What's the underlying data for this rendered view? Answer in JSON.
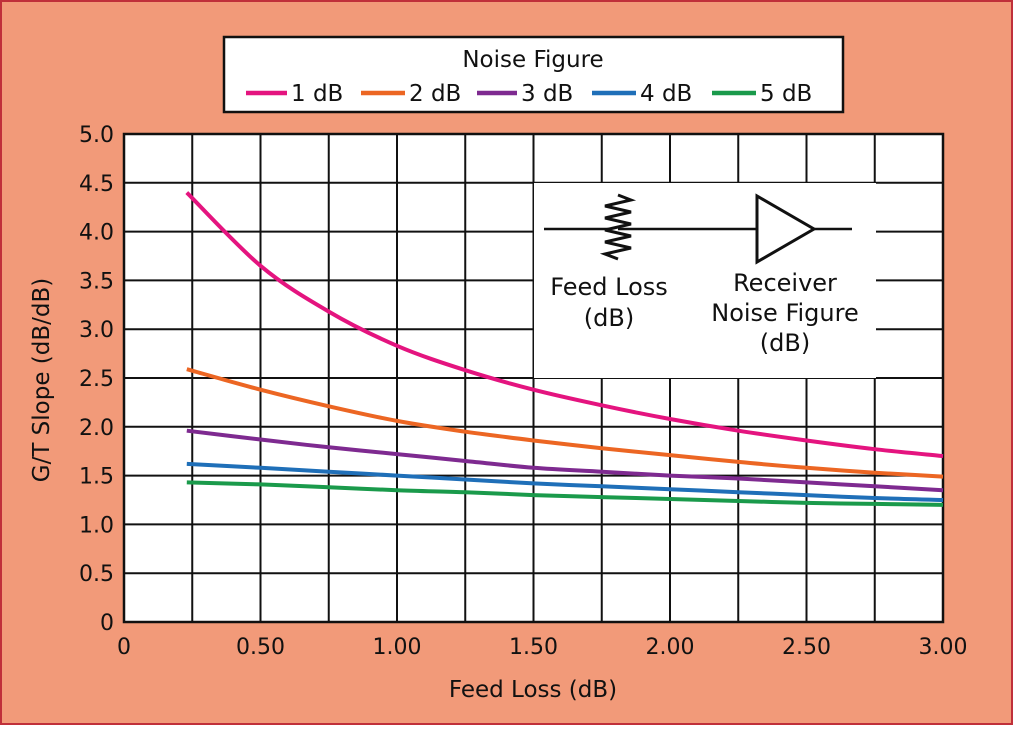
{
  "colors": {
    "background": "#f29a79",
    "border": "#c0303a",
    "plot_bg": "#ffffff",
    "grid": "#111111"
  },
  "legend": {
    "title": "Noise Figure"
  },
  "inset": {
    "left_label_1": "Feed Loss",
    "left_label_2": "(dB)",
    "right_label_1": "Receiver",
    "right_label_2": "Noise Figure",
    "right_label_3": "(dB)"
  },
  "chart_data": {
    "type": "line",
    "title": "",
    "xlabel": "Feed Loss (dB)",
    "ylabel": "G/T Slope (dB/dB)",
    "xlim": [
      0,
      3.0
    ],
    "ylim": [
      0,
      5.0
    ],
    "grid": true,
    "legend_position": "top-center",
    "x_ticks": [
      {
        "value": 0,
        "label": "0"
      },
      {
        "value": 0.5,
        "label": "0.50"
      },
      {
        "value": 1.0,
        "label": "1.00"
      },
      {
        "value": 1.5,
        "label": "1.50"
      },
      {
        "value": 2.0,
        "label": "2.00"
      },
      {
        "value": 2.5,
        "label": "2.50"
      },
      {
        "value": 3.0,
        "label": "3.00"
      }
    ],
    "y_ticks": [
      {
        "value": 0,
        "label": "0"
      },
      {
        "value": 0.5,
        "label": "0.5"
      },
      {
        "value": 1.0,
        "label": "1.0"
      },
      {
        "value": 1.5,
        "label": "1.5"
      },
      {
        "value": 2.0,
        "label": "2.0"
      },
      {
        "value": 2.5,
        "label": "2.5"
      },
      {
        "value": 3.0,
        "label": "3.0"
      },
      {
        "value": 3.5,
        "label": "3.5"
      },
      {
        "value": 4.0,
        "label": "4.0"
      },
      {
        "value": 4.5,
        "label": "4.5"
      },
      {
        "value": 5.0,
        "label": "5.0"
      }
    ],
    "series": [
      {
        "name": "1 dB",
        "color": "#e4147f",
        "x": [
          0.23,
          0.5,
          0.75,
          1.0,
          1.25,
          1.5,
          1.75,
          2.0,
          2.25,
          2.5,
          2.75,
          3.0
        ],
        "y": [
          4.4,
          3.65,
          3.18,
          2.83,
          2.58,
          2.38,
          2.22,
          2.08,
          1.96,
          1.86,
          1.77,
          1.7
        ]
      },
      {
        "name": "2 dB",
        "color": "#ec6623",
        "x": [
          0.23,
          0.5,
          0.75,
          1.0,
          1.25,
          1.5,
          1.75,
          2.0,
          2.25,
          2.5,
          2.75,
          3.0
        ],
        "y": [
          2.59,
          2.38,
          2.21,
          2.06,
          1.95,
          1.86,
          1.78,
          1.71,
          1.64,
          1.58,
          1.53,
          1.49
        ]
      },
      {
        "name": "3 dB",
        "color": "#7e2a90",
        "x": [
          0.23,
          0.5,
          0.75,
          1.0,
          1.25,
          1.5,
          1.75,
          2.0,
          2.25,
          2.5,
          2.75,
          3.0
        ],
        "y": [
          1.96,
          1.87,
          1.79,
          1.72,
          1.65,
          1.58,
          1.54,
          1.5,
          1.47,
          1.43,
          1.39,
          1.35
        ]
      },
      {
        "name": "4 dB",
        "color": "#1f6fb8",
        "x": [
          0.23,
          0.5,
          0.75,
          1.0,
          1.25,
          1.5,
          1.75,
          2.0,
          2.25,
          2.5,
          2.75,
          3.0
        ],
        "y": [
          1.62,
          1.58,
          1.54,
          1.5,
          1.46,
          1.42,
          1.39,
          1.36,
          1.33,
          1.3,
          1.27,
          1.25
        ]
      },
      {
        "name": "5 dB",
        "color": "#1a9a4b",
        "x": [
          0.23,
          0.5,
          0.75,
          1.0,
          1.25,
          1.5,
          1.75,
          2.0,
          2.25,
          2.5,
          2.75,
          3.0
        ],
        "y": [
          1.43,
          1.41,
          1.38,
          1.35,
          1.33,
          1.3,
          1.28,
          1.26,
          1.24,
          1.22,
          1.21,
          1.2
        ]
      }
    ]
  }
}
